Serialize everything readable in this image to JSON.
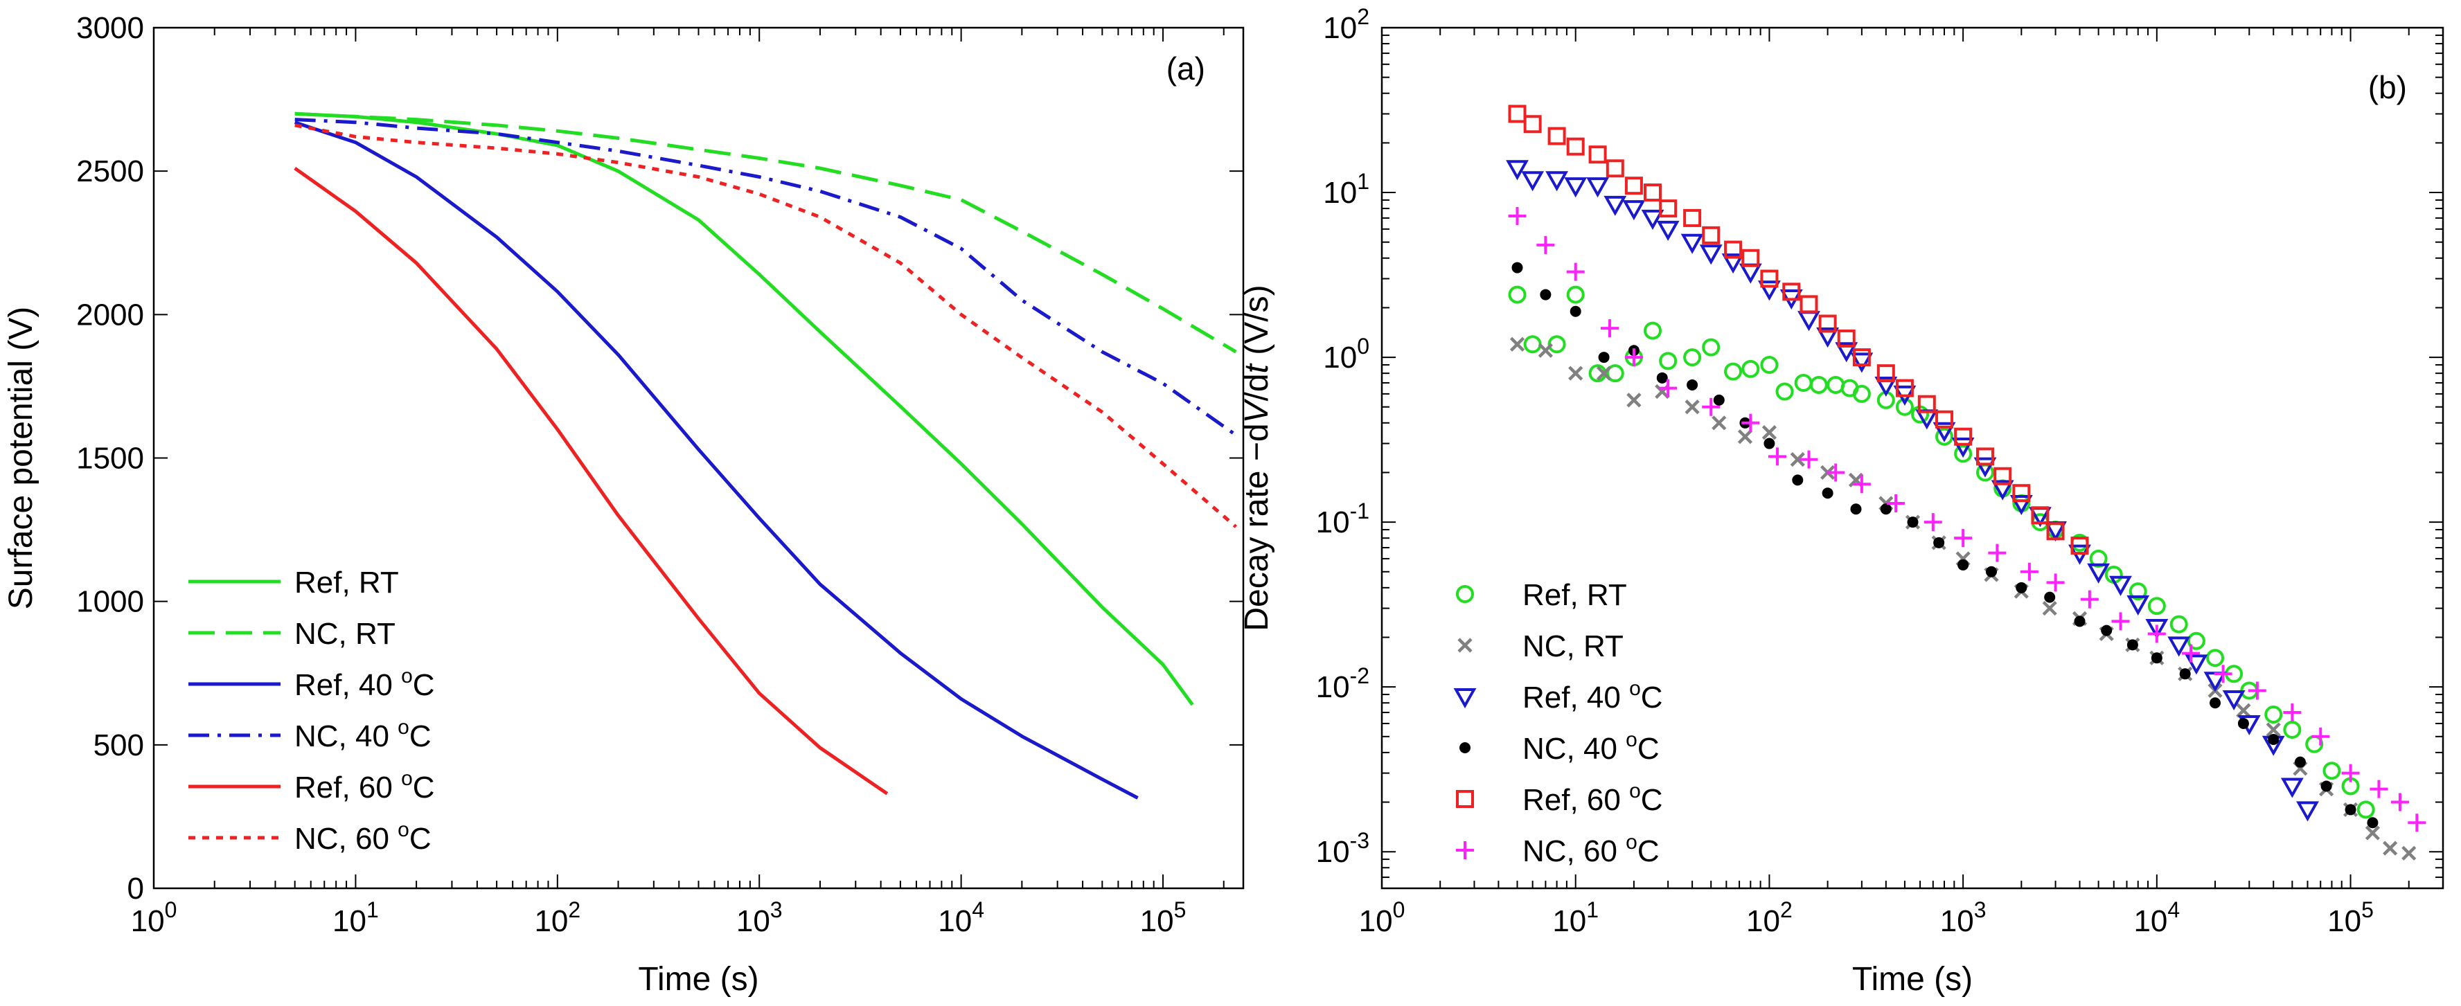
{
  "chart_data": [
    {
      "type": "line",
      "panel_label": "(a)",
      "xlabel": "Time (s)",
      "ylabel": "Surface potential (V)",
      "xscale": "log",
      "xlim": [
        1,
        250000
      ],
      "ylim": [
        0,
        3000
      ],
      "xticks": [
        {
          "value": 1,
          "base": "10",
          "exp": "0"
        },
        {
          "value": 10,
          "base": "10",
          "exp": "1"
        },
        {
          "value": 100,
          "base": "10",
          "exp": "2"
        },
        {
          "value": 1000,
          "base": "10",
          "exp": "3"
        },
        {
          "value": 10000,
          "base": "10",
          "exp": "4"
        },
        {
          "value": 100000,
          "base": "10",
          "exp": "5"
        }
      ],
      "yticks": [
        {
          "value": 0,
          "label": "0"
        },
        {
          "value": 500,
          "label": "500"
        },
        {
          "value": 1000,
          "label": "1000"
        },
        {
          "value": 1500,
          "label": "1500"
        },
        {
          "value": 2000,
          "label": "2000"
        },
        {
          "value": 2500,
          "label": "2500"
        },
        {
          "value": 3000,
          "label": "3000"
        }
      ],
      "legend_position": "bottom-left",
      "series": [
        {
          "name": "Ref, RT",
          "prefix": "Ref, RT",
          "sup": "",
          "suffix": "",
          "color": "#22dd22",
          "dash": "solid",
          "x": [
            5,
            10,
            20,
            50,
            100,
            200,
            500,
            1000,
            2000,
            5000,
            10000,
            20000,
            50000,
            100000,
            140000
          ],
          "y": [
            2700,
            2690,
            2670,
            2630,
            2590,
            2500,
            2330,
            2140,
            1940,
            1680,
            1480,
            1270,
            980,
            780,
            640
          ]
        },
        {
          "name": "NC, RT",
          "prefix": "NC, RT",
          "sup": "",
          "suffix": "",
          "color": "#22dd22",
          "dash": "long",
          "x": [
            5,
            10,
            20,
            50,
            100,
            200,
            500,
            1000,
            2000,
            5000,
            10000,
            20000,
            50000,
            100000,
            230000
          ],
          "y": [
            2700,
            2690,
            2680,
            2660,
            2640,
            2615,
            2575,
            2545,
            2510,
            2450,
            2400,
            2290,
            2140,
            2020,
            1870
          ]
        },
        {
          "name": "Ref, 40 oC",
          "prefix": "Ref, 40 ",
          "sup": "o",
          "suffix": "C",
          "color": "#1a1acc",
          "dash": "solid",
          "x": [
            5,
            10,
            20,
            50,
            100,
            200,
            500,
            1000,
            2000,
            5000,
            10000,
            20000,
            50000,
            75000
          ],
          "y": [
            2670,
            2600,
            2480,
            2270,
            2080,
            1860,
            1530,
            1290,
            1060,
            820,
            660,
            530,
            380,
            315
          ]
        },
        {
          "name": "NC, 40 oC",
          "prefix": "NC, 40 ",
          "sup": "o",
          "suffix": "C",
          "color": "#1a1acc",
          "dash": "dashdot",
          "x": [
            5,
            10,
            20,
            50,
            100,
            200,
            500,
            1000,
            2000,
            5000,
            10000,
            20000,
            50000,
            100000,
            230000
          ],
          "y": [
            2680,
            2670,
            2650,
            2630,
            2600,
            2570,
            2520,
            2480,
            2430,
            2340,
            2230,
            2050,
            1870,
            1760,
            1580
          ]
        },
        {
          "name": "Ref, 60 oC",
          "prefix": "Ref, 60 ",
          "sup": "o",
          "suffix": "C",
          "color": "#ee2222",
          "dash": "solid",
          "x": [
            5,
            10,
            20,
            50,
            100,
            200,
            500,
            1000,
            2000,
            4300
          ],
          "y": [
            2510,
            2360,
            2180,
            1880,
            1600,
            1300,
            940,
            680,
            490,
            330
          ]
        },
        {
          "name": "NC, 60 oC",
          "prefix": "NC, 60 ",
          "sup": "o",
          "suffix": "C",
          "color": "#ee2222",
          "dash": "dotted",
          "x": [
            5,
            10,
            20,
            50,
            100,
            200,
            500,
            1000,
            2000,
            5000,
            10000,
            20000,
            50000,
            100000,
            230000
          ],
          "y": [
            2660,
            2620,
            2600,
            2580,
            2560,
            2530,
            2480,
            2420,
            2340,
            2180,
            2000,
            1850,
            1660,
            1480,
            1260
          ]
        }
      ]
    },
    {
      "type": "scatter",
      "panel_label": "(b)",
      "xlabel": "Time (s)",
      "ylabel_prefix": "Decay rate −d",
      "ylabel_v": "V",
      "ylabel_mid": "/d",
      "ylabel_t": "t",
      "ylabel_suffix": " (V/s)",
      "xscale": "log",
      "yscale": "log",
      "xlim": [
        1,
        300000
      ],
      "ylim": [
        0.0006,
        100
      ],
      "xticks": [
        {
          "value": 1,
          "base": "10",
          "exp": "0"
        },
        {
          "value": 10,
          "base": "10",
          "exp": "1"
        },
        {
          "value": 100,
          "base": "10",
          "exp": "2"
        },
        {
          "value": 1000,
          "base": "10",
          "exp": "3"
        },
        {
          "value": 10000,
          "base": "10",
          "exp": "4"
        },
        {
          "value": 100000,
          "base": "10",
          "exp": "5"
        }
      ],
      "yticks": [
        {
          "value": 0.001,
          "base": "10",
          "exp": "-3"
        },
        {
          "value": 0.01,
          "base": "10",
          "exp": "-2"
        },
        {
          "value": 0.1,
          "base": "10",
          "exp": "-1"
        },
        {
          "value": 1,
          "base": "10",
          "exp": "0"
        },
        {
          "value": 10,
          "base": "10",
          "exp": "1"
        },
        {
          "value": 100,
          "base": "10",
          "exp": "2"
        }
      ],
      "legend_position": "bottom-left",
      "series": [
        {
          "name": "Ref, RT",
          "prefix": "Ref, RT",
          "sup": "",
          "suffix": "",
          "color": "#22dd22",
          "marker": "circle",
          "x": [
            5,
            6,
            8,
            10,
            13,
            16,
            20,
            25,
            30,
            40,
            50,
            65,
            80,
            100,
            120,
            150,
            180,
            220,
            260,
            300,
            400,
            500,
            600,
            800,
            1000,
            1300,
            1600,
            2000,
            2500,
            3000,
            4000,
            5000,
            6000,
            8000,
            10000,
            13000,
            16000,
            20000,
            25000,
            30000,
            40000,
            50000,
            65000,
            80000,
            100000,
            120000
          ],
          "y": [
            2.4,
            1.2,
            1.2,
            2.4,
            0.8,
            0.8,
            1.0,
            1.45,
            0.95,
            1.0,
            1.15,
            0.82,
            0.85,
            0.9,
            0.62,
            0.7,
            0.68,
            0.68,
            0.65,
            0.6,
            0.55,
            0.5,
            0.45,
            0.33,
            0.26,
            0.2,
            0.16,
            0.13,
            0.1,
            0.09,
            0.075,
            0.06,
            0.048,
            0.038,
            0.031,
            0.024,
            0.019,
            0.015,
            0.012,
            0.0095,
            0.0068,
            0.0055,
            0.0045,
            0.0031,
            0.0025,
            0.0018
          ]
        },
        {
          "name": "NC, RT",
          "prefix": "NC, RT",
          "sup": "",
          "suffix": "",
          "color": "#808080",
          "marker": "x",
          "x": [
            5,
            7,
            10,
            14,
            20,
            28,
            40,
            55,
            75,
            100,
            140,
            200,
            280,
            400,
            550,
            750,
            1000,
            1400,
            2000,
            2800,
            4000,
            5500,
            7500,
            10000,
            14000,
            20000,
            28000,
            40000,
            55000,
            75000,
            100000,
            130000,
            160000,
            200000
          ],
          "y": [
            1.2,
            1.1,
            0.8,
            0.8,
            0.55,
            0.62,
            0.5,
            0.4,
            0.33,
            0.35,
            0.24,
            0.2,
            0.18,
            0.13,
            0.1,
            0.075,
            0.06,
            0.048,
            0.038,
            0.03,
            0.026,
            0.021,
            0.018,
            0.015,
            0.012,
            0.0095,
            0.0072,
            0.0055,
            0.0032,
            0.0024,
            0.0018,
            0.0013,
            0.00105,
            0.00098
          ]
        },
        {
          "name": "Ref, 40 oC",
          "prefix": "Ref, 40 ",
          "sup": "o",
          "suffix": "C",
          "color": "#1a1acc",
          "marker": "triangle-down",
          "x": [
            5,
            6,
            8,
            10,
            13,
            16,
            20,
            25,
            30,
            40,
            50,
            65,
            80,
            100,
            130,
            160,
            200,
            250,
            300,
            400,
            500,
            650,
            800,
            1000,
            1300,
            1600,
            2000,
            2500,
            3000,
            4000,
            5000,
            6500,
            8000,
            10000,
            13000,
            16000,
            20000,
            25000,
            30000,
            40000,
            50000,
            60000
          ],
          "y": [
            14,
            12,
            12,
            11,
            11,
            8.5,
            8,
            7,
            6,
            5,
            4.3,
            3.8,
            3.3,
            2.6,
            2.3,
            1.7,
            1.35,
            1.1,
            0.95,
            0.68,
            0.6,
            0.43,
            0.36,
            0.29,
            0.22,
            0.16,
            0.13,
            0.11,
            0.09,
            0.065,
            0.05,
            0.042,
            0.032,
            0.023,
            0.018,
            0.014,
            0.011,
            0.0085,
            0.006,
            0.0045,
            0.0025,
            0.0018
          ]
        },
        {
          "name": "NC, 40 oC",
          "prefix": "NC, 40 ",
          "sup": "o",
          "suffix": "C",
          "color": "#000000",
          "marker": "dot",
          "x": [
            5,
            7,
            10,
            14,
            20,
            28,
            40,
            55,
            75,
            100,
            140,
            200,
            280,
            400,
            550,
            750,
            1000,
            1400,
            2000,
            2800,
            4000,
            5500,
            7500,
            10000,
            14000,
            20000,
            28000,
            40000,
            55000,
            75000,
            100000,
            130000
          ],
          "y": [
            3.5,
            2.4,
            1.9,
            1.0,
            1.1,
            0.75,
            0.68,
            0.55,
            0.4,
            0.3,
            0.18,
            0.15,
            0.12,
            0.12,
            0.1,
            0.075,
            0.055,
            0.05,
            0.04,
            0.035,
            0.025,
            0.022,
            0.018,
            0.015,
            0.012,
            0.008,
            0.006,
            0.0048,
            0.0035,
            0.0025,
            0.0018,
            0.0015
          ]
        },
        {
          "name": "Ref, 60 oC",
          "prefix": "Ref, 60 ",
          "sup": "o",
          "suffix": "C",
          "color": "#ee2222",
          "marker": "square",
          "x": [
            5,
            6,
            8,
            10,
            13,
            16,
            20,
            25,
            30,
            40,
            50,
            65,
            80,
            100,
            130,
            160,
            200,
            250,
            300,
            400,
            500,
            650,
            800,
            1000,
            1300,
            1600,
            2000,
            2500,
            3000,
            4000
          ],
          "y": [
            30,
            26,
            22,
            19,
            17,
            14,
            11,
            10,
            8,
            7,
            5.5,
            4.5,
            4,
            3,
            2.5,
            2.1,
            1.6,
            1.3,
            1.0,
            0.8,
            0.65,
            0.52,
            0.42,
            0.33,
            0.25,
            0.19,
            0.15,
            0.11,
            0.088,
            0.072
          ]
        },
        {
          "name": "NC, 60 oC",
          "prefix": "NC, 60 ",
          "sup": "o",
          "suffix": "C",
          "color": "#ff22ff",
          "marker": "plus",
          "x": [
            5,
            7,
            10,
            15,
            20,
            30,
            50,
            80,
            110,
            160,
            220,
            300,
            450,
            700,
            1000,
            1500,
            2200,
            3000,
            4500,
            6500,
            10000,
            15000,
            22000,
            33000,
            50000,
            70000,
            100000,
            140000,
            180000,
            220000
          ],
          "y": [
            7.2,
            4.8,
            3.3,
            1.5,
            1.0,
            0.65,
            0.5,
            0.4,
            0.25,
            0.24,
            0.2,
            0.17,
            0.13,
            0.1,
            0.08,
            0.065,
            0.05,
            0.043,
            0.034,
            0.025,
            0.021,
            0.016,
            0.012,
            0.0095,
            0.007,
            0.005,
            0.003,
            0.0024,
            0.002,
            0.0015
          ]
        }
      ]
    }
  ]
}
